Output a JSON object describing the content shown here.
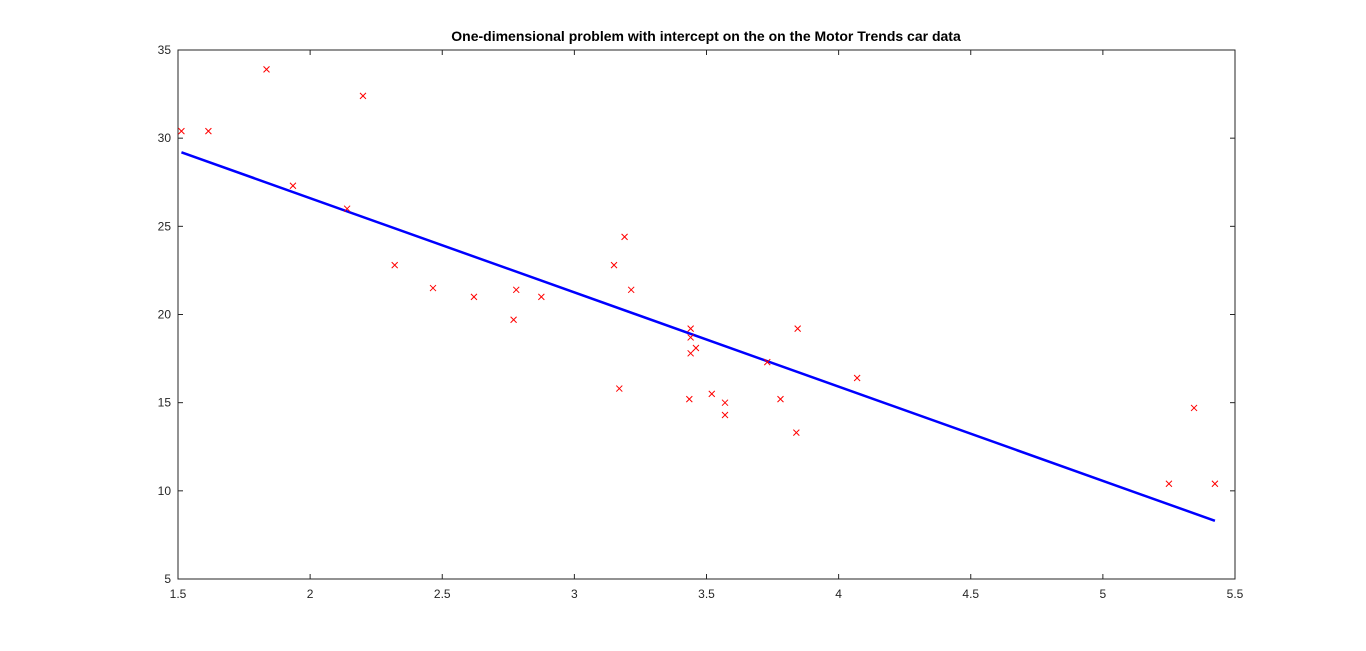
{
  "chart_data": {
    "type": "scatter",
    "title": "One-dimensional problem with intercept on the on the Motor Trends car data",
    "xlabel": "",
    "ylabel": "",
    "xlim": [
      1.5,
      5.5
    ],
    "ylim": [
      5,
      35
    ],
    "xticks": [
      "1.5",
      "2",
      "2.5",
      "3",
      "3.5",
      "4",
      "4.5",
      "5",
      "5.5"
    ],
    "yticks": [
      "5",
      "10",
      "15",
      "20",
      "25",
      "30",
      "35"
    ],
    "grid": false,
    "legend": "none",
    "series": [
      {
        "kind": "scatter",
        "marker": "x",
        "color": "#ff0000",
        "points": [
          [
            2.62,
            21.0
          ],
          [
            2.875,
            21.0
          ],
          [
            2.32,
            22.8
          ],
          [
            3.215,
            21.4
          ],
          [
            3.44,
            18.7
          ],
          [
            3.46,
            18.1
          ],
          [
            3.57,
            14.3
          ],
          [
            3.19,
            24.4
          ],
          [
            3.15,
            22.8
          ],
          [
            3.44,
            19.2
          ],
          [
            3.44,
            17.8
          ],
          [
            4.07,
            16.4
          ],
          [
            3.73,
            17.3
          ],
          [
            3.78,
            15.2
          ],
          [
            5.25,
            10.4
          ],
          [
            5.424,
            10.4
          ],
          [
            5.345,
            14.7
          ],
          [
            2.2,
            32.4
          ],
          [
            1.615,
            30.4
          ],
          [
            1.835,
            33.9
          ],
          [
            2.465,
            21.5
          ],
          [
            3.52,
            15.5
          ],
          [
            3.435,
            15.2
          ],
          [
            3.84,
            13.3
          ],
          [
            3.845,
            19.2
          ],
          [
            1.935,
            27.3
          ],
          [
            2.14,
            26.0
          ],
          [
            1.513,
            30.4
          ],
          [
            3.17,
            15.8
          ],
          [
            2.77,
            19.7
          ],
          [
            3.57,
            15.0
          ],
          [
            2.78,
            21.4
          ]
        ]
      },
      {
        "kind": "line",
        "color": "#0000ff",
        "points": [
          [
            1.513,
            29.2
          ],
          [
            5.424,
            8.3
          ]
        ]
      }
    ]
  }
}
